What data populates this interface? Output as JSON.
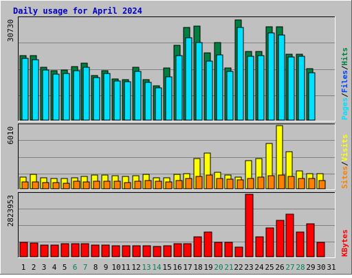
{
  "title": "Daily usage for April 2024",
  "axis_max_labels": {
    "hits": "30730",
    "sites": "6010",
    "kbytes": "2823953"
  },
  "legend": {
    "panel1": [
      {
        "text": "Pages",
        "color": "#00e0ff"
      },
      {
        "text": "/",
        "color": "#000000"
      },
      {
        "text": "Files",
        "color": "#0040ff"
      },
      {
        "text": "/",
        "color": "#000000"
      },
      {
        "text": "Hits",
        "color": "#008040"
      }
    ],
    "panel2": [
      {
        "text": "Sites",
        "color": "#ff8000"
      },
      {
        "text": "/",
        "color": "#000000"
      },
      {
        "text": "Visits",
        "color": "#ffff00"
      }
    ],
    "panel3": [
      {
        "text": "KBytes",
        "color": "#ff0000"
      }
    ]
  },
  "chart_data": {
    "type": "bar",
    "days": [
      "1",
      "2",
      "3",
      "4",
      "5",
      "6",
      "7",
      "8",
      "9",
      "10",
      "11",
      "12",
      "13",
      "14",
      "15",
      "16",
      "17",
      "18",
      "19",
      "20",
      "21",
      "22",
      "23",
      "24",
      "25",
      "26",
      "27",
      "28",
      "29",
      "30",
      "31"
    ],
    "weekend_days": [
      "6",
      "7",
      "13",
      "14",
      "20",
      "21",
      "27",
      "28"
    ],
    "panels": [
      {
        "name": "hits-files-pages",
        "ymax": 30730,
        "series": [
          {
            "name": "Hits",
            "color": "#008040",
            "values": [
              19500,
              19500,
              15900,
              15000,
              15200,
              16100,
              17300,
              13400,
              14900,
              12500,
              12200,
              15900,
              12300,
              10400,
              15800,
              22600,
              28000,
              28400,
              20300,
              23400,
              15800,
              30300,
              20700,
              20800,
              28200,
              28300,
              19900,
              20000,
              15600,
              null,
              null
            ]
          },
          {
            "name": "Files",
            "color": "#0040ff",
            "values": [
              18600,
              18300,
              15100,
              14000,
              14100,
              14900,
              15900,
              12900,
              14200,
              11900,
              11600,
              14700,
              11500,
              9700,
              13000,
              19500,
              25000,
              23400,
              17900,
              19800,
              14800,
              28100,
              19400,
              19600,
              26300,
              25700,
              19000,
              19300,
              14300,
              null,
              null
            ]
          },
          {
            "name": "Pages",
            "color": "#00e0ff",
            "values": [
              18600,
              18300,
              15100,
              14000,
              14100,
              14900,
              15900,
              12900,
              14200,
              11900,
              11600,
              14700,
              11500,
              9700,
              13000,
              19500,
              25000,
              23400,
              17900,
              19800,
              14800,
              28100,
              19400,
              19600,
              26300,
              25700,
              19000,
              19300,
              14300,
              null,
              null
            ]
          }
        ]
      },
      {
        "name": "visits-sites",
        "ymax": 6010,
        "series": [
          {
            "name": "Visits",
            "color": "#ffff00",
            "values": [
              1100,
              1400,
              1050,
              950,
              950,
              1050,
              1150,
              1300,
              1300,
              1250,
              1150,
              1250,
              1350,
              1050,
              1050,
              1350,
              1450,
              2850,
              3400,
              1600,
              1300,
              1100,
              2700,
              2850,
              4300,
              6010,
              3500,
              1700,
              1450,
              1450,
              null
            ]
          },
          {
            "name": "Sites",
            "color": "#ff8000",
            "values": [
              650,
              650,
              600,
              600,
              550,
              700,
              650,
              700,
              700,
              700,
              600,
              700,
              800,
              700,
              650,
              800,
              950,
              1200,
              1300,
              1000,
              900,
              850,
              1000,
              1100,
              1250,
              1300,
              1150,
              1000,
              950,
              800,
              null
            ]
          }
        ]
      },
      {
        "name": "kbytes",
        "ymax": 2823953,
        "series": [
          {
            "name": "KBytes",
            "color": "#ff0000",
            "values": [
              650000,
              620000,
              530000,
              530000,
              580000,
              580000,
              590000,
              530000,
              520000,
              500000,
              510000,
              490000,
              510000,
              470000,
              490000,
              590000,
              600000,
              890000,
              1110000,
              660000,
              640000,
              420000,
              2823953,
              900000,
              1300000,
              1640000,
              1910000,
              1110000,
              1500000,
              640000,
              null
            ]
          }
        ]
      }
    ]
  }
}
